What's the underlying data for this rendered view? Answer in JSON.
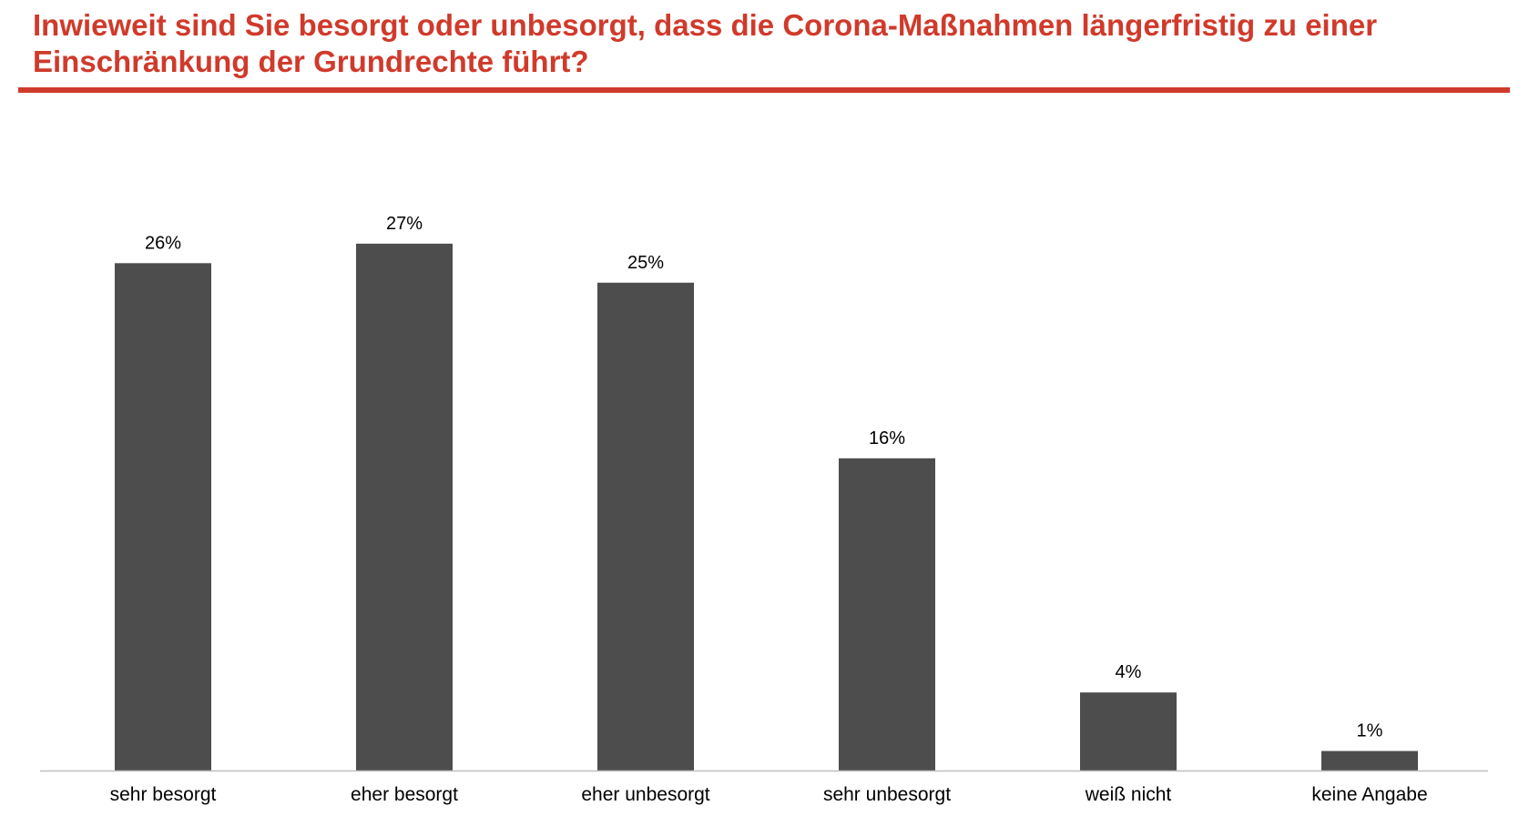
{
  "title": "Inwieweit sind Sie besorgt oder unbesorgt, dass die Corona-Maßnahmen längerfristig zu einer Einschränkung der Grundrechte führt?",
  "colors": {
    "accent": "#d03a2b",
    "bar": "#4d4d4d",
    "axis": "#bfbfbf",
    "text": "#000000"
  },
  "chart_data": {
    "type": "bar",
    "title": "Inwieweit sind Sie besorgt oder unbesorgt, dass die Corona-Maßnahmen längerfristig zu einer Einschränkung der Grundrechte führt?",
    "categories": [
      "sehr besorgt",
      "eher besorgt",
      "eher unbesorgt",
      "sehr unbesorgt",
      "weiß nicht",
      "keine Angabe"
    ],
    "values": [
      26,
      27,
      25,
      16,
      4,
      1
    ],
    "value_labels": [
      "26%",
      "27%",
      "25%",
      "16%",
      "4%",
      "1%"
    ],
    "unit": "%",
    "grid": false,
    "legend": "none"
  }
}
